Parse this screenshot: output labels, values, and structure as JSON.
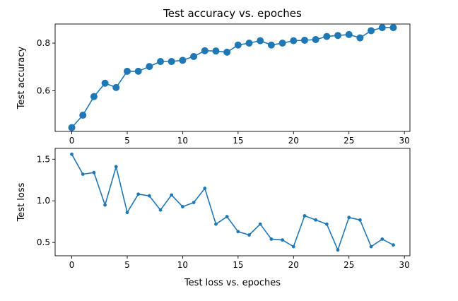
{
  "chart_data": [
    {
      "type": "line",
      "title": "Test accuracy vs. epoches",
      "xlabel": "",
      "ylabel": "Test accuracy",
      "xlim": [
        -1.5,
        30.5
      ],
      "ylim": [
        0.43,
        0.88
      ],
      "xticks": [
        0,
        5,
        10,
        15,
        20,
        25,
        30
      ],
      "yticks": [
        0.6,
        0.8
      ],
      "ytick_labels": [
        "0.6",
        "0.8"
      ],
      "grid": false,
      "marker": "large-circle",
      "color": "#1f77b4",
      "x": [
        0,
        1,
        2,
        3,
        4,
        5,
        6,
        7,
        8,
        9,
        10,
        11,
        12,
        13,
        14,
        15,
        16,
        17,
        18,
        19,
        20,
        21,
        22,
        23,
        24,
        25,
        26,
        27,
        28,
        29
      ],
      "series": [
        {
          "values": [
            0.446,
            0.498,
            0.576,
            0.632,
            0.614,
            0.682,
            0.682,
            0.702,
            0.723,
            0.723,
            0.728,
            0.744,
            0.768,
            0.767,
            0.762,
            0.792,
            0.8,
            0.81,
            0.792,
            0.8,
            0.81,
            0.812,
            0.815,
            0.828,
            0.832,
            0.836,
            0.822,
            0.852,
            0.865,
            0.865
          ]
        }
      ]
    },
    {
      "type": "line",
      "title": "",
      "xlabel": "Test loss vs. epoches",
      "ylabel": "Test loss",
      "xlim": [
        -1.5,
        30.5
      ],
      "ylim": [
        0.34,
        1.63
      ],
      "xticks": [
        0,
        5,
        10,
        15,
        20,
        25,
        30
      ],
      "yticks": [
        0.5,
        1.0,
        1.5
      ],
      "ytick_labels": [
        "0.5",
        "1.0",
        "1.5"
      ],
      "grid": false,
      "marker": "small-dot",
      "color": "#1f77b4",
      "x": [
        0,
        1,
        2,
        3,
        4,
        5,
        6,
        7,
        8,
        9,
        10,
        11,
        12,
        13,
        14,
        15,
        16,
        17,
        18,
        19,
        20,
        21,
        22,
        23,
        24,
        25,
        26,
        27,
        28,
        29
      ],
      "series": [
        {
          "values": [
            1.56,
            1.32,
            1.34,
            0.95,
            1.41,
            0.86,
            1.08,
            1.06,
            0.89,
            1.07,
            0.93,
            0.98,
            1.15,
            0.72,
            0.81,
            0.63,
            0.59,
            0.72,
            0.54,
            0.53,
            0.45,
            0.82,
            0.77,
            0.72,
            0.41,
            0.8,
            0.77,
            0.45,
            0.54,
            0.47
          ]
        }
      ]
    }
  ]
}
